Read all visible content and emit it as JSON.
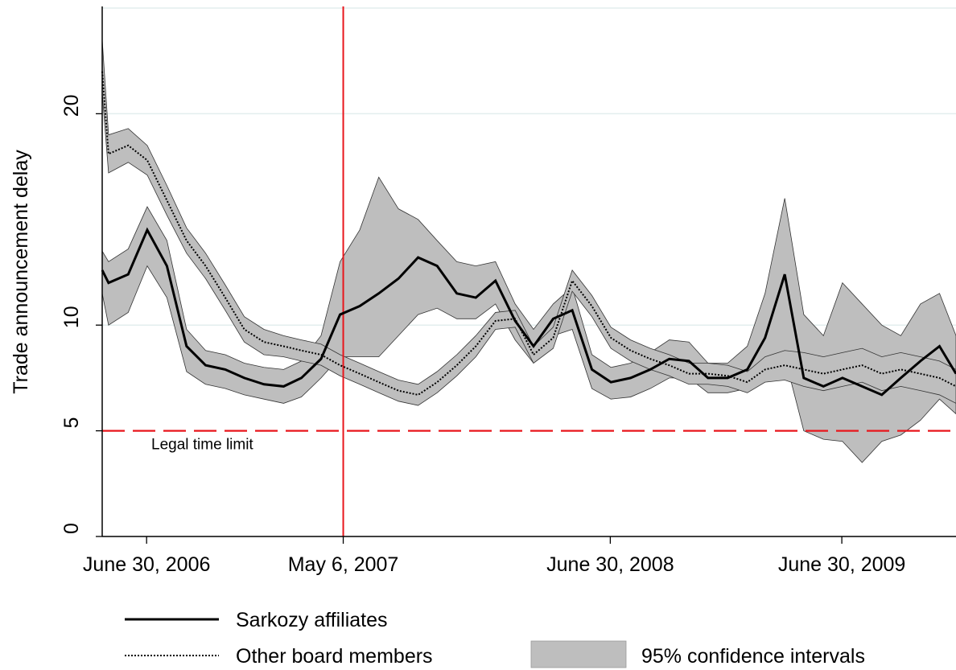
{
  "chart_data": {
    "type": "line",
    "y_axis_label": "Trade announcement delay",
    "x": [
      "2006-04-21",
      "2006-05-01",
      "2006-06-01",
      "2006-07-01",
      "2006-08-01",
      "2006-09-01",
      "2006-10-01",
      "2006-11-01",
      "2006-12-01",
      "2007-01-01",
      "2007-02-01",
      "2007-03-01",
      "2007-04-01",
      "2007-05-01",
      "2007-06-01",
      "2007-07-01",
      "2007-08-01",
      "2007-09-01",
      "2007-10-01",
      "2007-11-01",
      "2007-12-01",
      "2008-01-01",
      "2008-02-01",
      "2008-03-01",
      "2008-04-01",
      "2008-05-01",
      "2008-06-01",
      "2008-07-01",
      "2008-08-01",
      "2008-09-01",
      "2008-10-01",
      "2008-11-01",
      "2008-12-01",
      "2009-01-01",
      "2009-02-01",
      "2009-03-01",
      "2009-04-01",
      "2009-05-01",
      "2009-06-01",
      "2009-07-01",
      "2009-08-01",
      "2009-09-01",
      "2009-10-01",
      "2009-11-01",
      "2009-12-01",
      "2009-12-27"
    ],
    "series": [
      {
        "name": "Sarkozy affiliates",
        "color": "#000000",
        "dash": "solid",
        "values": [
          12.6,
          12.0,
          12.4,
          14.5,
          12.8,
          9.0,
          8.1,
          7.9,
          7.5,
          7.2,
          7.1,
          7.5,
          8.4,
          10.5,
          10.9,
          11.5,
          12.2,
          13.2,
          12.8,
          11.5,
          11.3,
          12.1,
          10.2,
          9.0,
          10.3,
          10.7,
          7.9,
          7.3,
          7.5,
          7.9,
          8.4,
          8.3,
          7.5,
          7.5,
          7.9,
          9.4,
          12.4,
          7.5,
          7.1,
          7.5,
          7.1,
          6.7,
          7.5,
          8.3,
          9.0,
          7.7
        ],
        "upper": [
          13.5,
          13.0,
          13.6,
          15.6,
          14.0,
          9.8,
          8.8,
          8.6,
          8.2,
          8.0,
          7.9,
          8.3,
          9.5,
          13.0,
          14.5,
          17.0,
          15.5,
          15.0,
          14.0,
          13.0,
          12.8,
          13.0,
          11.0,
          9.8,
          11.0,
          11.8,
          8.6,
          8.0,
          8.2,
          8.7,
          9.3,
          9.2,
          8.2,
          8.2,
          9.0,
          11.5,
          16.0,
          10.5,
          9.5,
          12.0,
          11.0,
          10.0,
          9.5,
          11.0,
          11.5,
          9.5
        ],
        "lower": [
          11.5,
          10.0,
          10.6,
          12.8,
          11.3,
          7.8,
          7.2,
          7.0,
          6.7,
          6.5,
          6.3,
          6.6,
          7.5,
          8.5,
          8.5,
          8.5,
          9.5,
          10.5,
          10.8,
          10.3,
          10.3,
          11.0,
          9.3,
          8.2,
          9.5,
          9.8,
          7.0,
          6.5,
          6.6,
          7.0,
          7.5,
          7.5,
          6.8,
          6.8,
          7.0,
          7.5,
          8.5,
          5.0,
          4.6,
          4.5,
          3.5,
          4.5,
          4.8,
          5.5,
          6.5,
          5.8
        ]
      },
      {
        "name": "Other board members",
        "color": "#000000",
        "dash": "dotted",
        "values": [
          22,
          18.1,
          18.5,
          17.8,
          15.9,
          14.0,
          12.8,
          11.3,
          9.8,
          9.2,
          9.0,
          8.8,
          8.6,
          8.1,
          7.7,
          7.3,
          6.9,
          6.7,
          7.3,
          8.1,
          9.0,
          10.2,
          10.3,
          8.6,
          9.4,
          12.1,
          10.9,
          9.4,
          8.8,
          8.4,
          8.1,
          7.7,
          7.7,
          7.6,
          7.3,
          7.9,
          8.1,
          7.9,
          7.7,
          7.9,
          8.1,
          7.7,
          7.9,
          7.7,
          7.5,
          7.1
        ],
        "upper": [
          23.5,
          19.0,
          19.3,
          18.5,
          16.6,
          14.6,
          13.4,
          11.9,
          10.4,
          9.8,
          9.5,
          9.3,
          9.1,
          8.6,
          8.2,
          7.8,
          7.4,
          7.2,
          7.8,
          8.6,
          9.5,
          10.6,
          10.7,
          9.0,
          9.9,
          12.6,
          11.4,
          9.9,
          9.3,
          8.9,
          8.6,
          8.2,
          8.2,
          8.1,
          7.8,
          8.5,
          8.8,
          8.7,
          8.5,
          8.7,
          8.9,
          8.5,
          8.7,
          8.5,
          8.3,
          7.9
        ],
        "lower": [
          21.0,
          17.2,
          17.7,
          17.1,
          15.2,
          13.4,
          12.2,
          10.7,
          9.2,
          8.6,
          8.5,
          8.3,
          8.1,
          7.6,
          7.2,
          6.8,
          6.4,
          6.2,
          6.8,
          7.6,
          8.5,
          9.8,
          9.9,
          8.2,
          8.9,
          11.6,
          10.4,
          8.9,
          8.3,
          7.9,
          7.6,
          7.2,
          7.2,
          7.1,
          6.8,
          7.3,
          7.4,
          7.1,
          6.9,
          7.1,
          7.3,
          6.9,
          7.1,
          6.9,
          6.7,
          6.3
        ]
      }
    ],
    "band_label": "95% confidence intervals",
    "band_color": "#bebebe",
    "xlim": [
      "2006-04-21",
      "2009-12-27"
    ],
    "xticks": [
      {
        "value": "2006-06-30",
        "label": "June 30, 2006"
      },
      {
        "value": "2007-05-06",
        "label": "May 6, 2007"
      },
      {
        "value": "2008-06-30",
        "label": "June 30, 2008"
      },
      {
        "value": "2009-06-30",
        "label": "June 30, 2009"
      }
    ],
    "ylim": [
      0,
      25
    ],
    "yticks": [
      0,
      5,
      10,
      20
    ],
    "grid": true,
    "hline": {
      "value": 5,
      "label": "Legal time limit",
      "color": "#e8161c"
    },
    "vline": {
      "value": "2007-05-06",
      "color": "#e8161c"
    }
  }
}
